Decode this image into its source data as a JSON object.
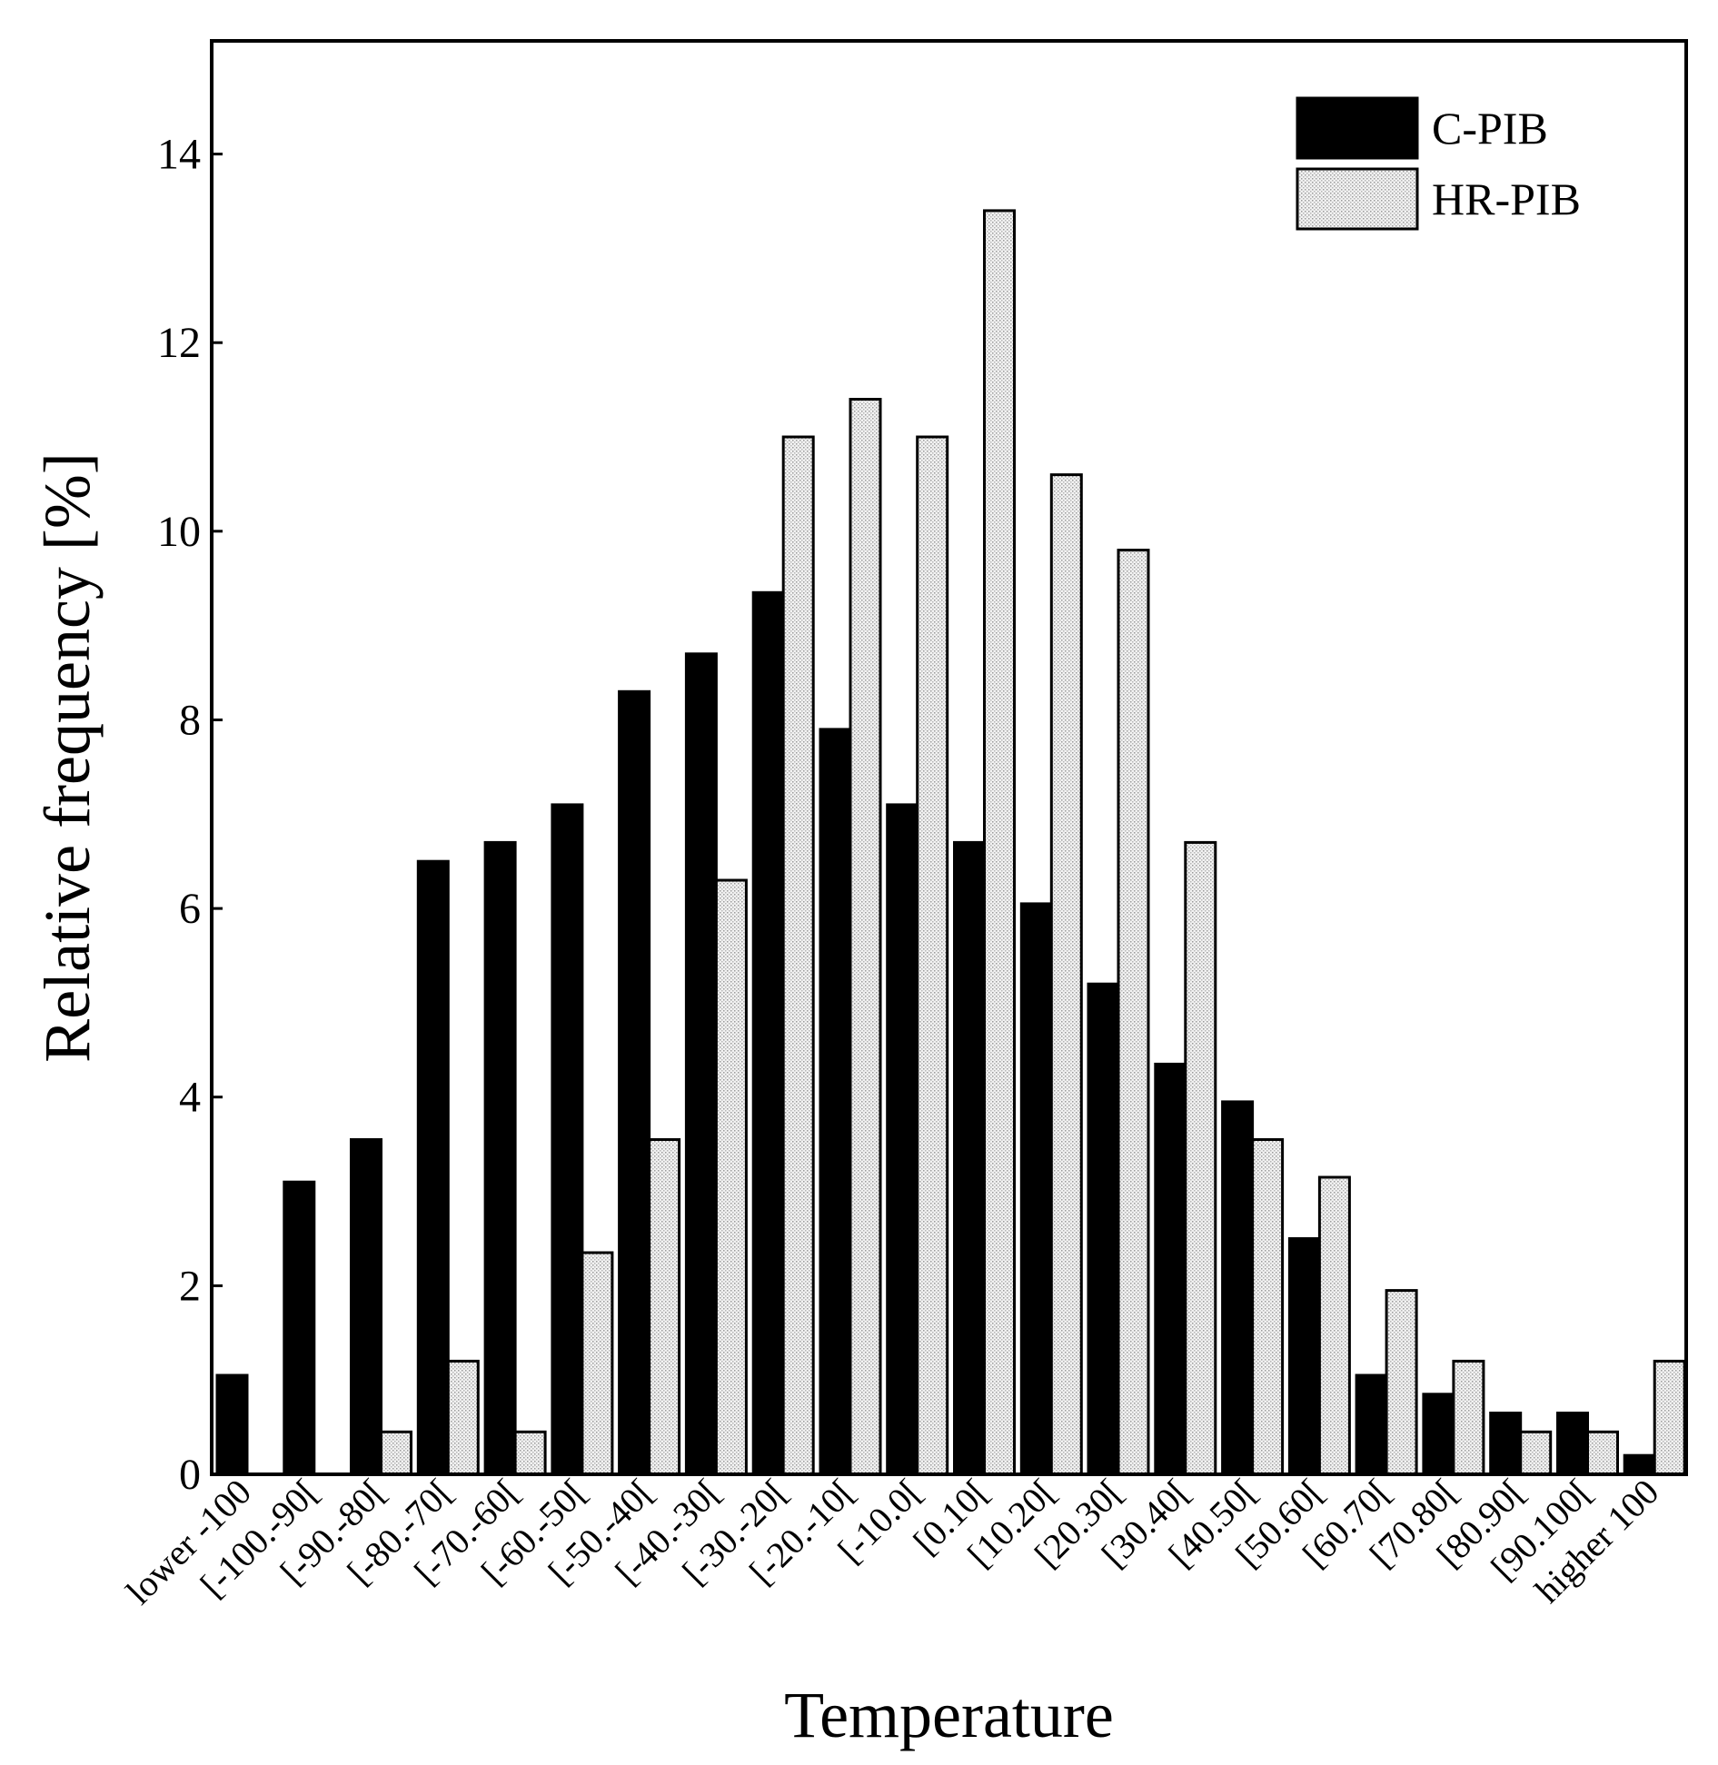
{
  "chart_data": {
    "type": "bar",
    "title": "",
    "xlabel": "Temperature",
    "ylabel": "Relative frequency [%]",
    "ylim": [
      0,
      15.2
    ],
    "yticks": [
      0,
      2,
      4,
      6,
      8,
      10,
      12,
      14
    ],
    "ytick_labels": [
      "0",
      "2",
      "4",
      "6",
      "8",
      "10",
      "12",
      "14"
    ],
    "grid": false,
    "legend_position": "top-right",
    "categories": [
      "lower -100",
      "[-100.-90[",
      "[-90.-80[",
      "[-80.-70[",
      "[-70.-60[",
      "[-60.-50[",
      "[-50.-40[",
      "[-40.-30[",
      "[-30.-20[",
      "[-20.-10[",
      "[-10.0[",
      "[0.10[",
      "[10.20[",
      "[20.30[",
      "[30.40[",
      "[40.50[",
      "[50.60[",
      "[60.70[",
      "[70.80[",
      "[80.90[",
      "[90.100[",
      "higher 100"
    ],
    "series": [
      {
        "name": "C-PIB",
        "color": "#000000",
        "values": [
          1.05,
          3.1,
          3.55,
          6.5,
          6.7,
          7.1,
          8.3,
          8.7,
          9.35,
          7.9,
          7.1,
          6.7,
          6.05,
          5.2,
          4.35,
          3.95,
          2.5,
          1.05,
          0.85,
          0.65,
          0.65,
          0.2
        ]
      },
      {
        "name": "HR-PIB",
        "color": "#e2e2e2",
        "values": [
          0,
          0,
          0.45,
          1.2,
          0.45,
          2.35,
          3.55,
          6.3,
          11.0,
          11.4,
          11.0,
          13.4,
          10.6,
          9.8,
          6.7,
          3.55,
          3.15,
          1.95,
          1.2,
          0.45,
          0.45,
          1.2
        ]
      }
    ]
  }
}
